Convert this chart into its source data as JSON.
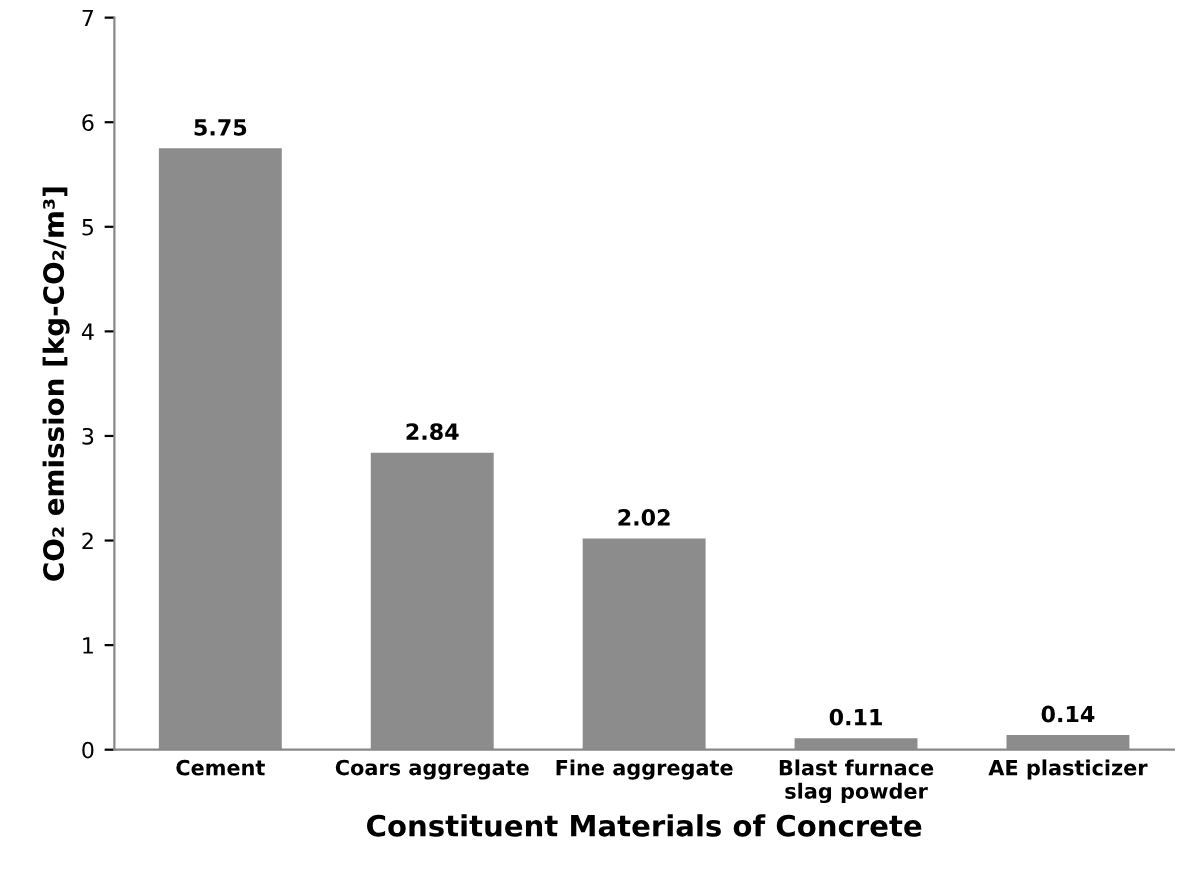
{
  "chart_data": {
    "type": "bar",
    "xlabel": "Constituent Materials of Concrete",
    "ylabel": "CO₂ emission [kg-CO₂/m³]",
    "categories": [
      "Cement",
      "Coars aggregate",
      "Fine aggregate",
      "Blast furnace\nslag powder",
      "AE plasticizer"
    ],
    "values": [
      5.75,
      2.84,
      2.02,
      0.11,
      0.14
    ],
    "color": "#8c8c8c",
    "ylim": [
      0,
      7
    ],
    "yticks": [
      0,
      1,
      2,
      3,
      4,
      5,
      6,
      7
    ],
    "data_labels": true,
    "grid": false,
    "legend": false
  }
}
